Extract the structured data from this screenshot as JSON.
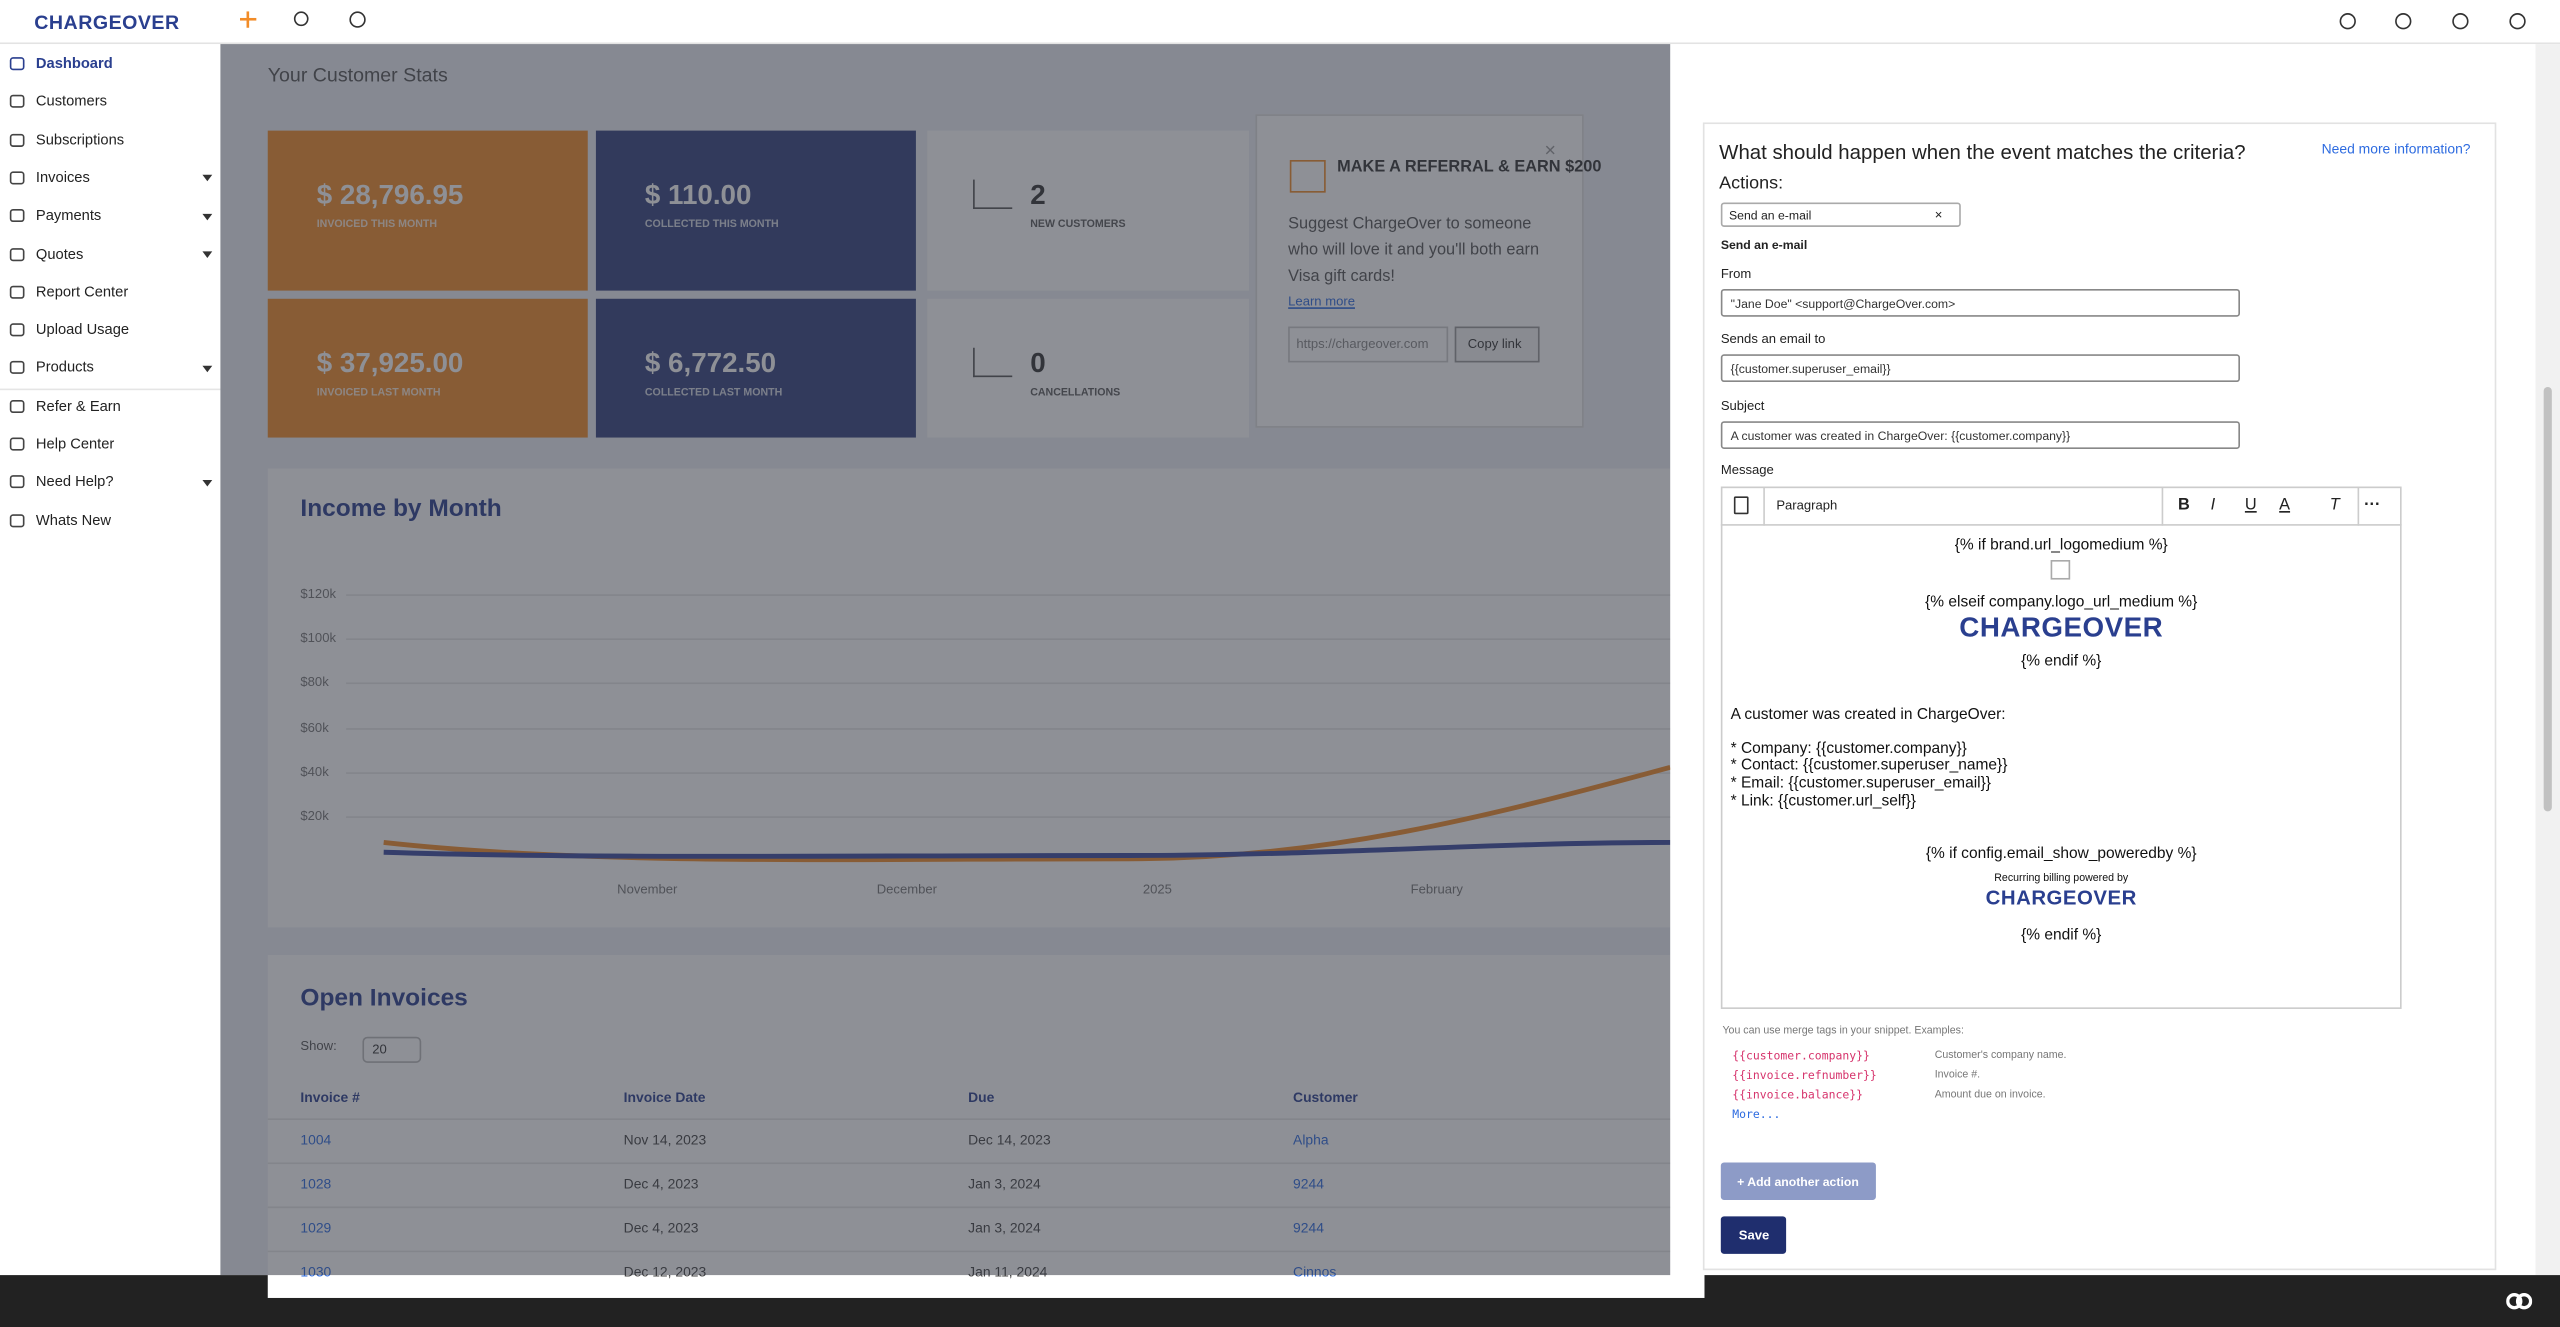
{
  "nav": {
    "brand": "CHARGEOVER"
  },
  "sidebar": {
    "items": [
      {
        "label": "Dashboard",
        "active": true
      },
      {
        "label": "Customers"
      },
      {
        "label": "Subscriptions"
      },
      {
        "label": "Invoices",
        "submenu": true
      },
      {
        "label": "Payments",
        "submenu": true
      },
      {
        "label": "Quotes",
        "submenu": true
      },
      {
        "label": "Report Center"
      },
      {
        "label": "Upload Usage"
      },
      {
        "label": "Products",
        "submenu": true
      },
      {
        "label": "Refer & Earn"
      },
      {
        "label": "Help Center"
      },
      {
        "label": "Need Help?",
        "submenu": true
      },
      {
        "label": "Whats New"
      }
    ]
  },
  "dashboard": {
    "stats_title": "Your Customer Stats",
    "stats": [
      {
        "value": "$ 28,796.95",
        "label": "INVOICED THIS MONTH"
      },
      {
        "value": "$ 110.00",
        "label": "COLLECTED THIS MONTH"
      },
      {
        "value": "2",
        "label": "NEW CUSTOMERS"
      },
      {
        "value": "$ 37,925.00",
        "label": "INVOICED LAST MONTH"
      },
      {
        "value": "$ 6,772.50",
        "label": "COLLECTED LAST MONTH"
      },
      {
        "value": "0",
        "label": "CANCELLATIONS"
      }
    ],
    "referral": {
      "title": "MAKE A REFERRAL & EARN $200",
      "text": "Suggest ChargeOver to someone who will love it and you'll both earn Visa gift cards!",
      "link": "Learn more",
      "url": "https://chargeover.com",
      "button": "Copy link"
    },
    "income": {
      "title": "Income by Month",
      "yticks": [
        "$120k",
        "$100k",
        "$80k",
        "$60k",
        "$40k",
        "$20k"
      ],
      "xlabels": [
        "November",
        "December",
        "2025",
        "February"
      ]
    },
    "invoices": {
      "title": "Open Invoices",
      "show_label": "Show:",
      "show_value": "20",
      "columns": [
        "Invoice #",
        "Invoice Date",
        "Due",
        "Customer"
      ],
      "rows": [
        [
          "1004",
          "Nov 14, 2023",
          "Dec 14, 2023",
          "Alpha"
        ],
        [
          "1028",
          "Dec 4, 2023",
          "Jan 3, 2024",
          "9244"
        ],
        [
          "1029",
          "Dec 4, 2023",
          "Jan 3, 2024",
          "9244"
        ],
        [
          "1030",
          "Dec 12, 2023",
          "Jan 11, 2024",
          "Cinnos"
        ]
      ]
    }
  },
  "panel": {
    "title": "What should happen when the event matches the criteria?",
    "help_link": "Need more information?",
    "actions_label": "Actions:",
    "action_select": "Send an e-mail",
    "section_title": "Send an e-mail",
    "fields": [
      {
        "label": "From",
        "value": "\"Jane Doe\" <support@ChargeOver.com>"
      },
      {
        "label": "Sends an email to",
        "value": "{{customer.superuser_email}}"
      },
      {
        "label": "Subject",
        "value": "A customer was created in ChargeOver: {{customer.company}}"
      }
    ],
    "message_label": "Message",
    "toolbar_format": "Paragraph",
    "editor_lines": [
      {
        "text": "{% if brand.url_logomedium %}",
        "align": "center"
      },
      {
        "text": "{% elseif company.logo_url_medium %}",
        "align": "center"
      },
      {
        "text": "CHARGEOVER",
        "align": "center",
        "logo": true
      },
      {
        "text": "{% endif %}",
        "align": "center"
      },
      {
        "text": "A customer was created in ChargeOver:",
        "align": "left"
      },
      {
        "text": "* Company: {{customer.company}}",
        "align": "left"
      },
      {
        "text": "* Contact: {{customer.superuser_name}}",
        "align": "left"
      },
      {
        "text": "* Email: {{customer.superuser_email}}",
        "align": "left"
      },
      {
        "text": "* Link: {{customer.url_self}}",
        "align": "left"
      },
      {
        "text": "{% if config.email_show_poweredby %}",
        "align": "center"
      },
      {
        "text": "Recurring billing powered by",
        "align": "center",
        "small": true
      },
      {
        "text": "CHARGEOVER",
        "align": "center",
        "logo": true,
        "small": true
      },
      {
        "text": "{% endif %}",
        "align": "center"
      }
    ],
    "merge_help": "You can use merge tags in your snippet. Examples:",
    "merge_tags": [
      {
        "tag": "{{customer.company}}",
        "desc": "Customer's company name."
      },
      {
        "tag": "{{invoice.refnumber}}",
        "desc": "Invoice #."
      },
      {
        "tag": "{{invoice.balance}}",
        "desc": "Amount due on invoice."
      }
    ],
    "merge_more": "More...",
    "add_button": "+ Add another action",
    "save_button": "Save"
  }
}
